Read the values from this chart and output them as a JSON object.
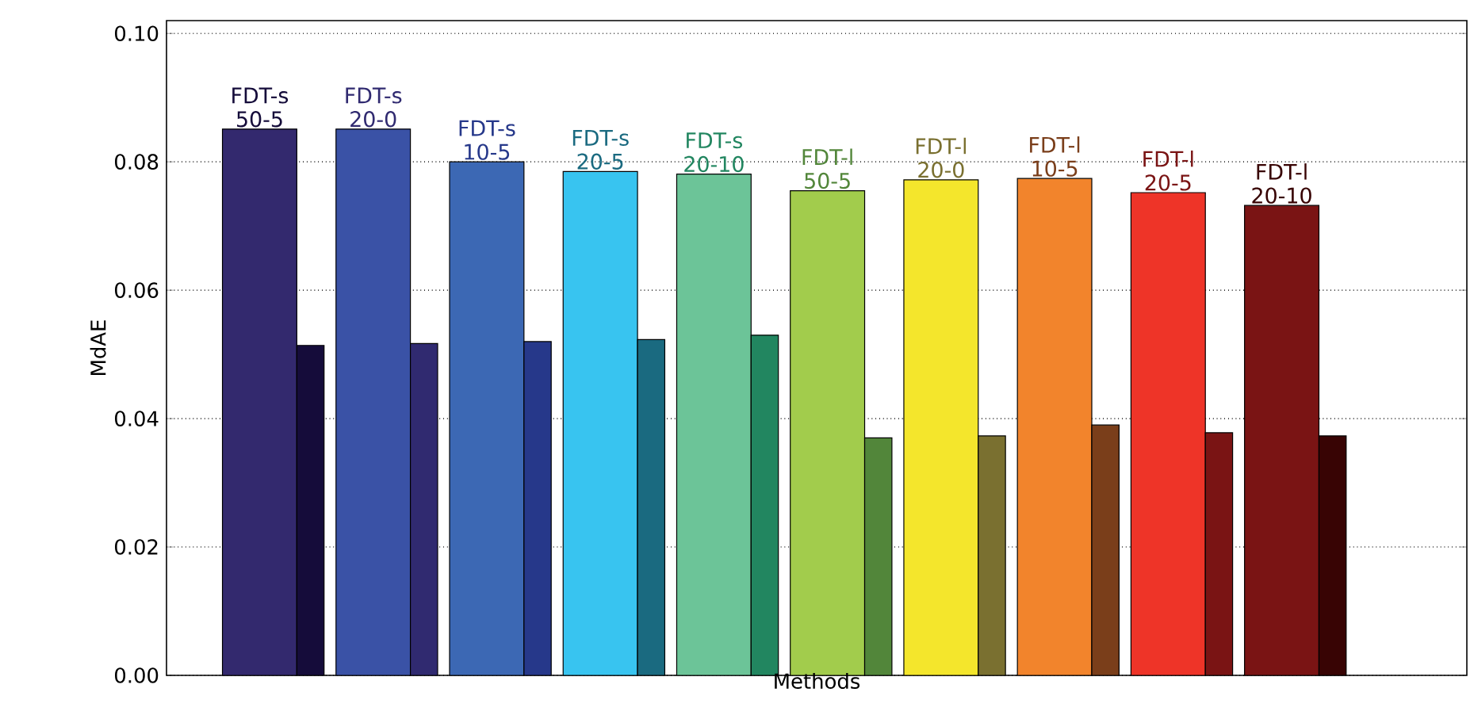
{
  "chart_data": {
    "type": "bar",
    "xlabel": "Methods",
    "ylabel": "MdAE",
    "categories": [
      "FDT-s 50-5",
      "FDT-s 20-0",
      "FDT-s 10-5",
      "FDT-s 20-5",
      "FDT-s 20-10",
      "FDT-l 50-5",
      "FDT-l 20-0",
      "FDT-l 10-5",
      "FDT-l 20-5",
      "FDT-l 20-10"
    ],
    "series": [
      {
        "colors": [
          "#33296e",
          "#3a52a6",
          "#3c68b4",
          "#38c4f0",
          "#6cc498",
          "#a2cc4c",
          "#f4e62c",
          "#f2842c",
          "#ee3428",
          "#7a1414"
        ],
        "values": [
          0.0851,
          0.0851,
          0.08,
          0.0785,
          0.0781,
          0.0755,
          0.0772,
          0.0774,
          0.0752,
          0.0732
        ]
      },
      {
        "colors": [
          "#150c3a",
          "#302a70",
          "#26388a",
          "#1a6a80",
          "#228660",
          "#52863a",
          "#7a7030",
          "#7a3e1a",
          "#7a1414",
          "#380404"
        ],
        "values": [
          0.0514,
          0.0517,
          0.052,
          0.0523,
          0.053,
          0.037,
          0.0373,
          0.039,
          0.0378,
          0.0373
        ]
      }
    ],
    "ylim": [
      0,
      0.102
    ],
    "yticks": [
      {
        "value": 0,
        "label": "0.00"
      },
      {
        "value": 0.02,
        "label": "0.02"
      },
      {
        "value": 0.04,
        "label": "0.04"
      },
      {
        "value": 0.06,
        "label": "0.06"
      },
      {
        "value": 0.08,
        "label": "0.08"
      },
      {
        "value": 0.1,
        "label": "0.10"
      }
    ],
    "grid": "y"
  }
}
